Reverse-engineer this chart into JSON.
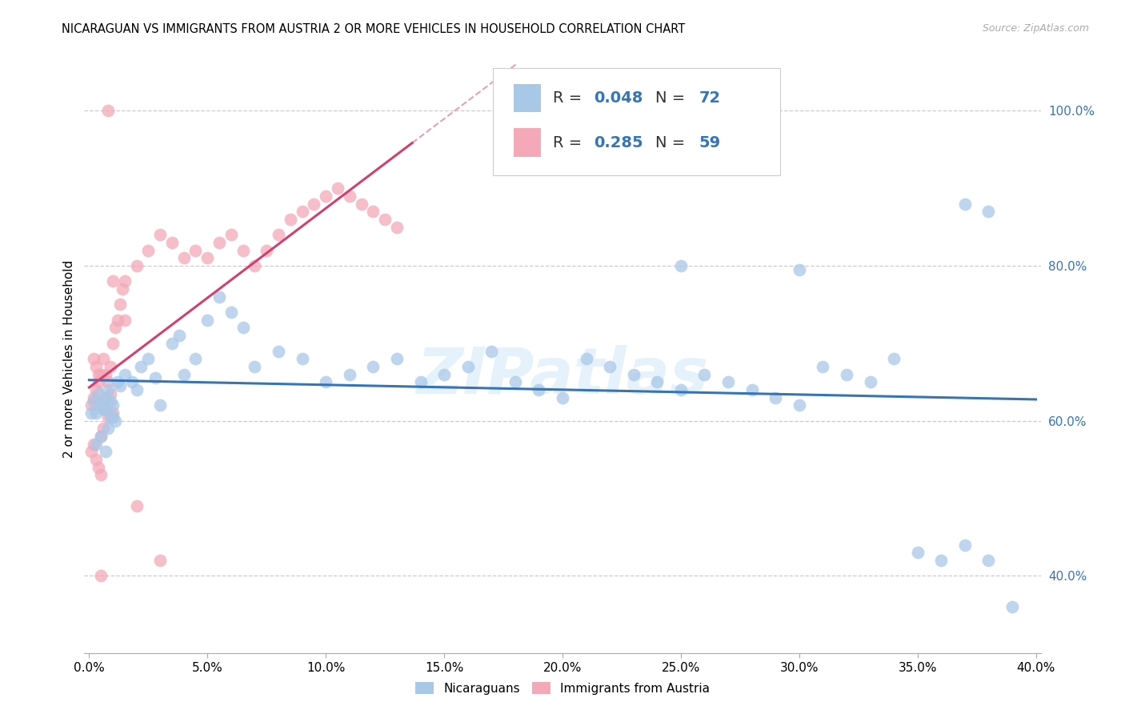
{
  "title": "NICARAGUAN VS IMMIGRANTS FROM AUSTRIA 2 OR MORE VEHICLES IN HOUSEHOLD CORRELATION CHART",
  "source": "Source: ZipAtlas.com",
  "ylabel": "2 or more Vehicles in Household",
  "blue_color": "#a8c8e8",
  "pink_color": "#f4a8b8",
  "blue_line_color": "#3575b5",
  "pink_line_color": "#d04070",
  "watermark": "ZIPatlas",
  "blue_r": 0.048,
  "blue_n": 72,
  "pink_r": 0.285,
  "pink_n": 59,
  "x_min": 0.0,
  "x_max": 0.4,
  "y_min": 0.3,
  "y_max": 1.06,
  "right_y_ticks": [
    0.4,
    0.6,
    0.8,
    1.0
  ],
  "right_y_labels": [
    "40.0%",
    "60.0%",
    "80.0%",
    "100.0%"
  ],
  "blue_scatter_x": [
    0.005,
    0.008,
    0.012,
    0.003,
    0.007,
    0.01,
    0.002,
    0.006,
    0.009,
    0.004,
    0.011,
    0.013,
    0.001,
    0.008,
    0.005,
    0.003,
    0.007,
    0.01,
    0.006,
    0.009,
    0.015,
    0.018,
    0.02,
    0.022,
    0.025,
    0.028,
    0.03,
    0.035,
    0.038,
    0.04,
    0.045,
    0.05,
    0.055,
    0.06,
    0.065,
    0.07,
    0.08,
    0.09,
    0.1,
    0.11,
    0.12,
    0.13,
    0.14,
    0.15,
    0.16,
    0.17,
    0.18,
    0.19,
    0.2,
    0.21,
    0.22,
    0.23,
    0.24,
    0.25,
    0.26,
    0.27,
    0.28,
    0.29,
    0.3,
    0.31,
    0.32,
    0.33,
    0.34,
    0.35,
    0.36,
    0.37,
    0.38,
    0.39,
    0.37,
    0.3,
    0.25,
    0.38
  ],
  "blue_scatter_y": [
    0.62,
    0.64,
    0.65,
    0.61,
    0.63,
    0.62,
    0.625,
    0.615,
    0.605,
    0.635,
    0.6,
    0.645,
    0.61,
    0.59,
    0.58,
    0.57,
    0.56,
    0.605,
    0.615,
    0.625,
    0.66,
    0.65,
    0.64,
    0.67,
    0.68,
    0.655,
    0.62,
    0.7,
    0.71,
    0.66,
    0.68,
    0.73,
    0.76,
    0.74,
    0.72,
    0.67,
    0.69,
    0.68,
    0.65,
    0.66,
    0.67,
    0.68,
    0.65,
    0.66,
    0.67,
    0.69,
    0.65,
    0.64,
    0.63,
    0.68,
    0.67,
    0.66,
    0.65,
    0.64,
    0.66,
    0.65,
    0.64,
    0.63,
    0.62,
    0.67,
    0.66,
    0.65,
    0.68,
    0.43,
    0.42,
    0.44,
    0.42,
    0.36,
    0.88,
    0.795,
    0.8,
    0.87
  ],
  "pink_scatter_x": [
    0.001,
    0.002,
    0.003,
    0.004,
    0.005,
    0.006,
    0.007,
    0.008,
    0.009,
    0.01,
    0.002,
    0.003,
    0.004,
    0.005,
    0.006,
    0.001,
    0.002,
    0.003,
    0.004,
    0.005,
    0.006,
    0.007,
    0.008,
    0.009,
    0.01,
    0.011,
    0.012,
    0.013,
    0.014,
    0.015,
    0.02,
    0.025,
    0.03,
    0.035,
    0.04,
    0.045,
    0.05,
    0.055,
    0.06,
    0.065,
    0.07,
    0.075,
    0.08,
    0.085,
    0.09,
    0.095,
    0.1,
    0.105,
    0.11,
    0.115,
    0.12,
    0.125,
    0.13,
    0.01,
    0.015,
    0.02,
    0.03,
    0.005,
    0.008
  ],
  "pink_scatter_y": [
    0.62,
    0.63,
    0.64,
    0.65,
    0.66,
    0.625,
    0.615,
    0.605,
    0.635,
    0.61,
    0.68,
    0.67,
    0.66,
    0.58,
    0.59,
    0.56,
    0.57,
    0.55,
    0.54,
    0.53,
    0.68,
    0.66,
    0.65,
    0.67,
    0.7,
    0.72,
    0.73,
    0.75,
    0.77,
    0.78,
    0.8,
    0.82,
    0.84,
    0.83,
    0.81,
    0.82,
    0.81,
    0.83,
    0.84,
    0.82,
    0.8,
    0.82,
    0.84,
    0.86,
    0.87,
    0.88,
    0.89,
    0.9,
    0.89,
    0.88,
    0.87,
    0.86,
    0.85,
    0.78,
    0.73,
    0.49,
    0.42,
    0.4,
    1.0
  ]
}
